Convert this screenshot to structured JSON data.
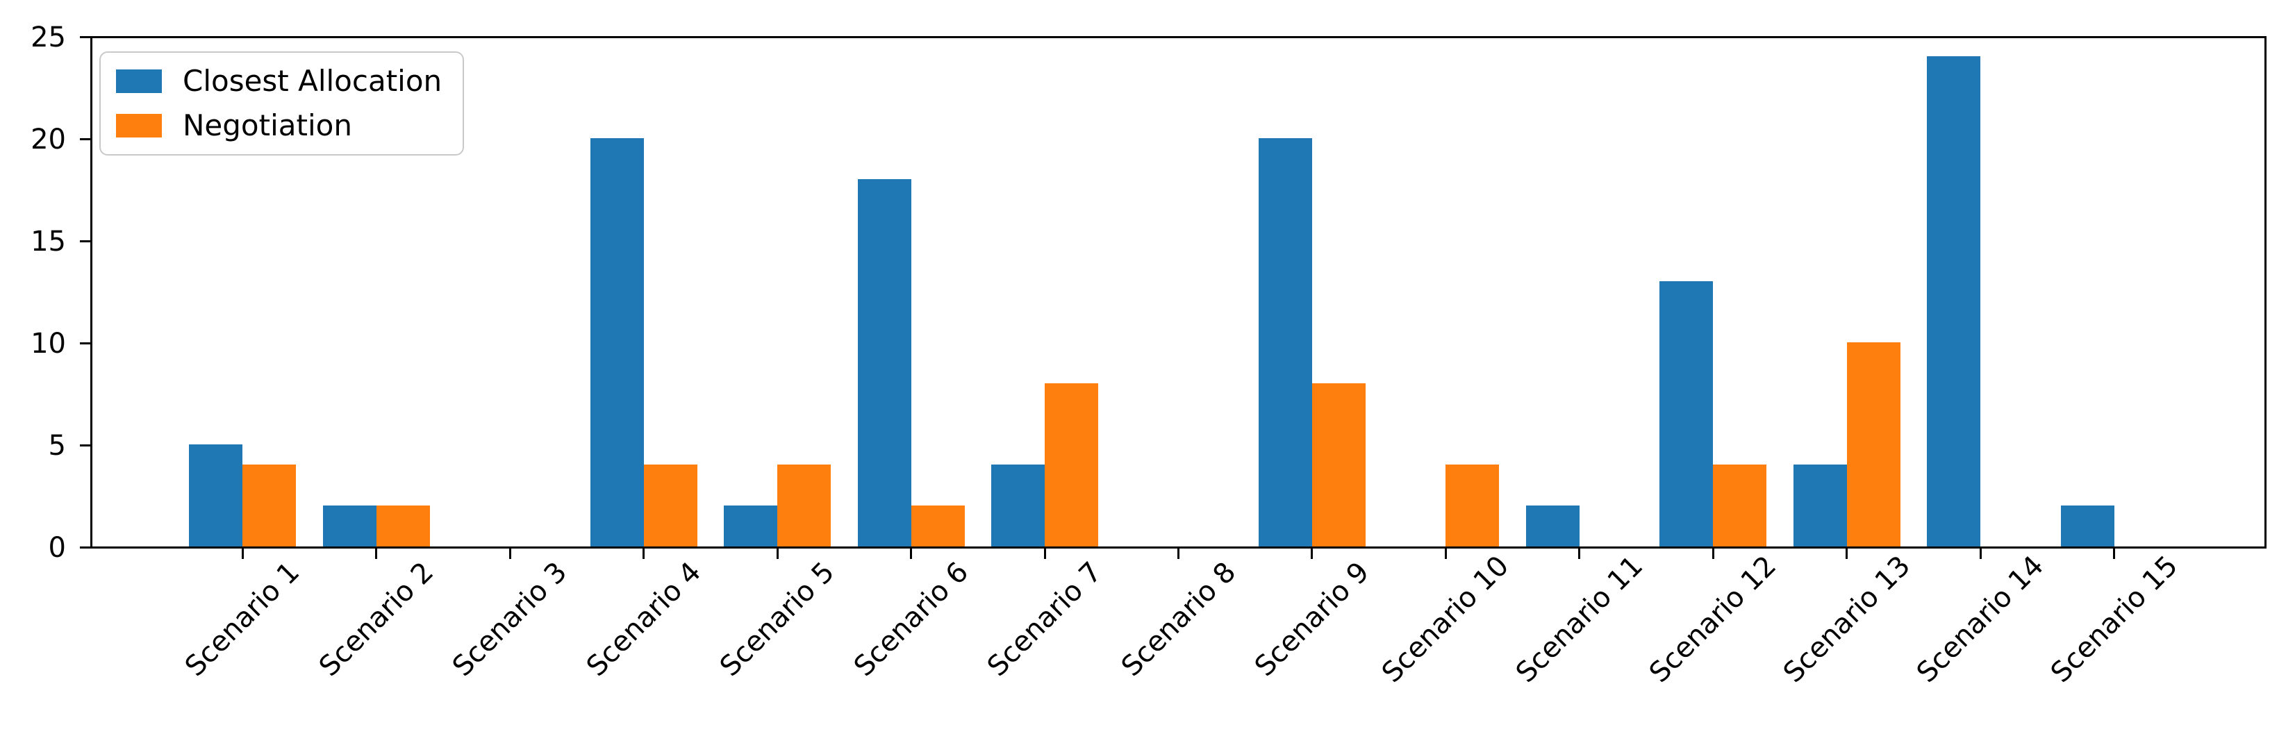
{
  "chart_data": {
    "type": "bar",
    "title": "",
    "xlabel": "",
    "ylabel": "",
    "categories": [
      "Scenario 1",
      "Scenario 2",
      "Scenario 3",
      "Scenario 4",
      "Scenario 5",
      "Scenario 6",
      "Scenario 7",
      "Scenario 8",
      "Scenario 9",
      "Scenario 10",
      "Scenario 11",
      "Scenario 12",
      "Scenario 13",
      "Scenario 14",
      "Scenario 15"
    ],
    "series": [
      {
        "name": "Closest Allocation",
        "color": "#1f77b4",
        "values": [
          5,
          2,
          0,
          20,
          2,
          18,
          4,
          0,
          20,
          0,
          2,
          13,
          4,
          24,
          2
        ]
      },
      {
        "name": "Negotiation",
        "color": "#ff7f0e",
        "values": [
          4,
          2,
          0,
          4,
          4,
          2,
          8,
          0,
          8,
          4,
          0,
          4,
          10,
          0,
          0
        ]
      }
    ],
    "ylim": [
      0,
      25
    ],
    "y_ticks": [
      0,
      5,
      10,
      15,
      20,
      25
    ],
    "x_tick_rotation_deg": 45,
    "bar_width_frac": 0.4,
    "grid": false,
    "legend_position": "upper left"
  },
  "colors": {
    "background": "#ffffff",
    "axis": "#000000",
    "legend_border": "#c9c9c9"
  }
}
